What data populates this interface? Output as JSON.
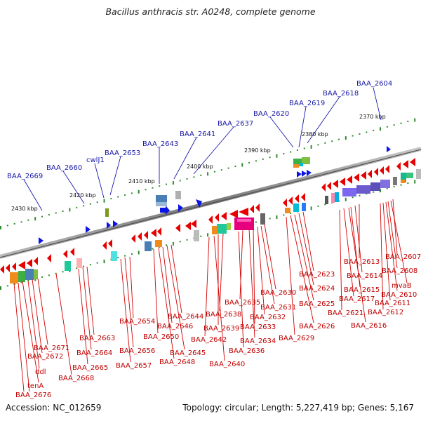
{
  "title": "Bacillus anthracis str. A0248, complete genome",
  "footer": {
    "accession": "Accession: NC_012659",
    "summary": "Topology: circular; Length: 5,227,419 bp; Genes: 5,167"
  },
  "scale_labels": [
    "2370 kbp",
    "2380 kbp",
    "2390 kbp",
    "2400 kbp",
    "2410 kbp",
    "2420 kbp",
    "2430 kbp"
  ],
  "top_labels": [
    "BAA_2604",
    "BAA_2618",
    "BAA_2619",
    "BAA_2620",
    "BAA_2637",
    "BAA_2641",
    "BAA_2643",
    "BAA_2653",
    "cwlJ1",
    "BAA_2660",
    "BAA_2669"
  ],
  "bottom_labels": [
    "BAA_2607",
    "mvaB",
    "BAA_2608",
    "BAA_2610",
    "BAA_2611",
    "BAA_2612",
    "BAA_2613",
    "BAA_2614",
    "BAA_2615",
    "BAA_2616",
    "BAA_2617",
    "BAA_2621",
    "BAA_2623",
    "BAA_2624",
    "BAA_2625",
    "BAA_2626",
    "BAA_2629",
    "BAA_2630",
    "BAA_2631",
    "BAA_2632",
    "BAA_2633",
    "BAA_2634",
    "BAA_2635",
    "BAA_2636",
    "BAA_2638",
    "BAA_2639",
    "BAA_2640",
    "BAA_2642",
    "BAA_2644",
    "BAA_2645",
    "BAA_2646",
    "BAA_2648",
    "BAA_2650",
    "BAA_2654",
    "BAA_2656",
    "BAA_2657",
    "BAA_2663",
    "BAA_2664",
    "BAA_2665",
    "BAA_2668",
    "BAA_2671",
    "BAA_2672",
    "ddl",
    "tenA",
    "BAA_2676"
  ],
  "colors": {
    "forward_gene": "#0a14e6",
    "reverse_gene": "#e60000",
    "top_label": "#1a1aa8",
    "bottom_label": "#c00000",
    "backbone": "#888888",
    "tick": "#2e8b2e"
  }
}
